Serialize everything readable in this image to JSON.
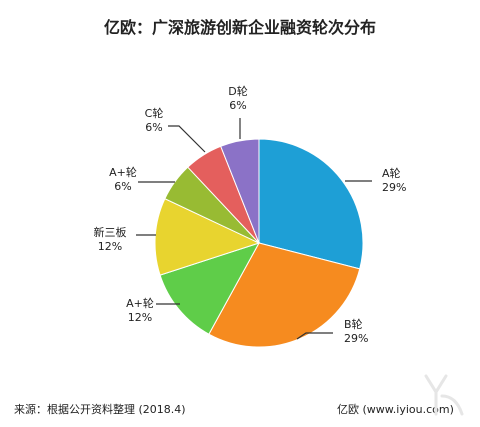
{
  "chart_data": {
    "type": "pie",
    "title": "亿欧：广深旅游创新企业融资轮次分布",
    "categories": [
      "A轮",
      "B轮",
      "A+轮",
      "新三板",
      "A+轮",
      "C轮",
      "D轮"
    ],
    "values": [
      29,
      29,
      12,
      12,
      6,
      6,
      6
    ],
    "value_labels": [
      "29%",
      "29%",
      "12%",
      "12%",
      "6%",
      "6%",
      "6%"
    ],
    "colors": [
      "#1e9fd6",
      "#f68b1f",
      "#5fcd49",
      "#e8d42f",
      "#98bb33",
      "#e45f5d",
      "#8b72c7"
    ],
    "legend": "none"
  },
  "footer": {
    "source": "来源：根据公开资料整理   (2018.4)",
    "brand": "亿欧  (www.iyiou.com)"
  }
}
